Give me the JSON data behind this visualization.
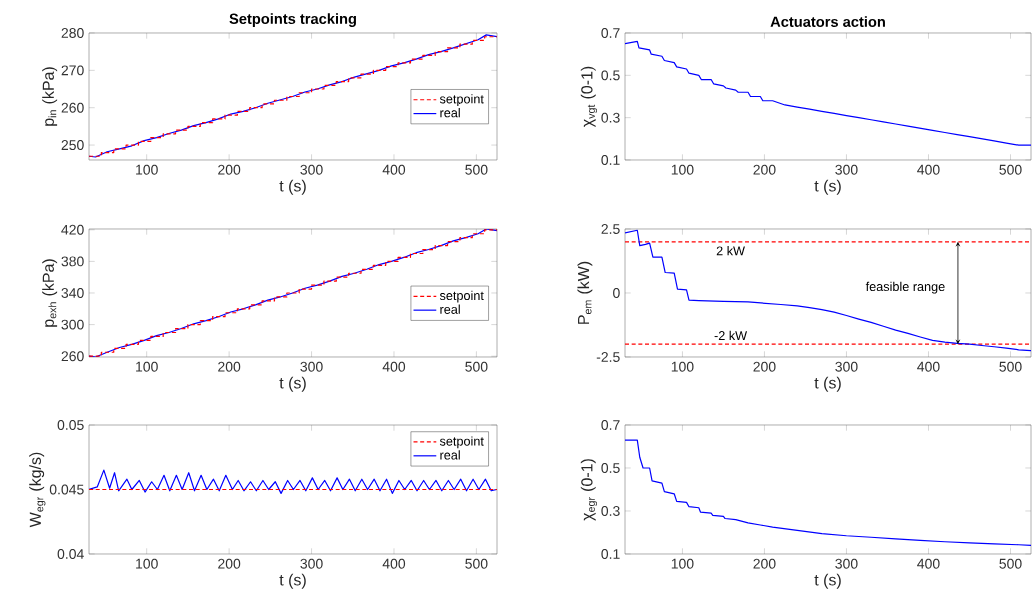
{
  "chart_data": [
    {
      "type": "line",
      "title": "Setpoints tracking",
      "xlabel": "t (s)",
      "ylabel": "p$_{in}$ (kPa)",
      "xlim": [
        30,
        525
      ],
      "xticks": [
        100,
        200,
        300,
        400,
        500
      ],
      "ylim": [
        246,
        280
      ],
      "yticks": [
        250,
        260,
        270,
        280
      ],
      "legend": "right",
      "series": [
        {
          "name": "setpoint",
          "type": "step",
          "color": "#ff0000",
          "line_style": "dashed",
          "x": [
            30,
            45,
            60,
            75,
            90,
            105,
            120,
            135,
            150,
            165,
            180,
            195,
            210,
            225,
            240,
            255,
            270,
            285,
            300,
            315,
            330,
            345,
            360,
            375,
            390,
            405,
            420,
            435,
            450,
            465,
            480,
            495,
            510,
            525
          ],
          "values": [
            247,
            248,
            249,
            250,
            251,
            252,
            253,
            254,
            255,
            256,
            257,
            258,
            259,
            260,
            261,
            262,
            263,
            264,
            265,
            266,
            267,
            268,
            269,
            270,
            271,
            272,
            273,
            274,
            275,
            276,
            277,
            278,
            279,
            279
          ]
        },
        {
          "name": "real",
          "color": "#0000ff",
          "line_style": "solid",
          "x": [
            30,
            38,
            52,
            67,
            82,
            97,
            112,
            127,
            142,
            157,
            172,
            187,
            202,
            217,
            232,
            247,
            262,
            277,
            292,
            307,
            322,
            337,
            352,
            367,
            382,
            397,
            412,
            427,
            442,
            457,
            472,
            487,
            502,
            512,
            525
          ],
          "values": [
            247,
            246.8,
            248.2,
            249,
            249.8,
            251.2,
            252,
            253.1,
            254,
            255.2,
            256,
            257,
            258.3,
            259,
            260,
            261.2,
            262.1,
            263,
            264.2,
            265,
            266.1,
            267,
            268.2,
            269.1,
            270,
            271.2,
            272,
            273,
            274.2,
            275,
            276,
            277.1,
            278.2,
            279.5,
            279
          ]
        }
      ]
    },
    {
      "type": "line",
      "title": "Actuators action",
      "xlabel": "t (s)",
      "ylabel": "χ$_{vgt}$ (0-1)",
      "xlim": [
        30,
        525
      ],
      "xticks": [
        100,
        200,
        300,
        400,
        500
      ],
      "ylim": [
        0.1,
        0.7
      ],
      "yticks": [
        0.1,
        0.3,
        0.5,
        0.7
      ],
      "series": [
        {
          "color": "#0000ff",
          "line_style": "solid",
          "x": [
            30,
            45,
            47,
            60,
            62,
            75,
            78,
            90,
            93,
            105,
            108,
            120,
            123,
            135,
            138,
            150,
            153,
            165,
            168,
            180,
            183,
            195,
            198,
            210,
            225,
            240,
            255,
            270,
            285,
            300,
            315,
            330,
            345,
            360,
            375,
            390,
            405,
            420,
            435,
            450,
            465,
            480,
            495,
            510,
            525
          ],
          "values": [
            0.65,
            0.66,
            0.63,
            0.62,
            0.6,
            0.59,
            0.57,
            0.56,
            0.54,
            0.53,
            0.51,
            0.5,
            0.48,
            0.48,
            0.46,
            0.45,
            0.44,
            0.43,
            0.42,
            0.42,
            0.4,
            0.4,
            0.38,
            0.38,
            0.36,
            0.35,
            0.34,
            0.33,
            0.32,
            0.31,
            0.3,
            0.29,
            0.28,
            0.27,
            0.26,
            0.25,
            0.24,
            0.23,
            0.22,
            0.21,
            0.2,
            0.19,
            0.18,
            0.17,
            0.17
          ]
        }
      ]
    },
    {
      "type": "line",
      "xlabel": "t (s)",
      "ylabel": "p$_{exh}$ (kPa)",
      "xlim": [
        30,
        525
      ],
      "xticks": [
        100,
        200,
        300,
        400,
        500
      ],
      "ylim": [
        259,
        421
      ],
      "yticks": [
        260,
        300,
        340,
        380,
        420
      ],
      "legend": "right",
      "series": [
        {
          "name": "setpoint",
          "type": "step",
          "color": "#ff0000",
          "line_style": "dashed",
          "x": [
            30,
            45,
            60,
            75,
            90,
            105,
            120,
            135,
            150,
            165,
            180,
            195,
            210,
            225,
            240,
            255,
            270,
            285,
            300,
            315,
            330,
            345,
            360,
            375,
            390,
            405,
            420,
            435,
            450,
            465,
            480,
            495,
            510,
            525
          ],
          "values": [
            260,
            265,
            270,
            275,
            280,
            285,
            290,
            295,
            300,
            305,
            310,
            315,
            320,
            325,
            330,
            335,
            340,
            345,
            350,
            355,
            360,
            365,
            370,
            375,
            380,
            385,
            390,
            395,
            400,
            405,
            410,
            415,
            420,
            420
          ]
        },
        {
          "name": "real",
          "color": "#0000ff",
          "line_style": "solid",
          "x": [
            30,
            38,
            52,
            67,
            82,
            97,
            112,
            127,
            142,
            157,
            172,
            187,
            202,
            217,
            232,
            247,
            262,
            277,
            292,
            307,
            322,
            337,
            352,
            367,
            382,
            397,
            412,
            427,
            442,
            457,
            472,
            487,
            502,
            512,
            525
          ],
          "values": [
            260,
            259,
            265,
            271,
            275,
            280,
            286,
            290,
            295,
            301,
            305,
            310,
            316,
            320,
            325,
            331,
            335,
            340,
            346,
            350,
            355,
            361,
            365,
            370,
            376,
            380,
            385,
            391,
            395,
            400,
            406,
            410,
            415,
            421,
            419
          ]
        }
      ]
    },
    {
      "type": "line",
      "xlabel": "t (s)",
      "ylabel": "P$_{em}$ (kW)",
      "xlim": [
        30,
        525
      ],
      "xticks": [
        100,
        200,
        300,
        400,
        500
      ],
      "ylim": [
        -2.5,
        2.5
      ],
      "yticks": [
        -2.5,
        0,
        2.5
      ],
      "ref_lines": [
        {
          "axis": "y",
          "value": 2,
          "label": "2 kW",
          "color": "#ff0000",
          "line_style": "dashed"
        },
        {
          "axis": "y",
          "value": -2,
          "label": "-2 kW",
          "color": "#ff0000",
          "line_style": "dashed"
        }
      ],
      "annotations": [
        "feasible range"
      ],
      "series": [
        {
          "color": "#0000ff",
          "line_style": "solid",
          "x": [
            30,
            45,
            48,
            55,
            60,
            64,
            75,
            79,
            90,
            94,
            105,
            108,
            120,
            150,
            180,
            200,
            220,
            240,
            255,
            270,
            285,
            300,
            315,
            330,
            345,
            360,
            375,
            390,
            405,
            420,
            435,
            450,
            465,
            480,
            495,
            510,
            525
          ],
          "values": [
            2.35,
            2.45,
            1.85,
            1.9,
            1.95,
            1.4,
            1.4,
            0.8,
            0.78,
            0.15,
            0.12,
            -0.28,
            -0.3,
            -0.33,
            -0.35,
            -0.4,
            -0.45,
            -0.5,
            -0.57,
            -0.65,
            -0.75,
            -0.88,
            -1.02,
            -1.15,
            -1.3,
            -1.45,
            -1.58,
            -1.72,
            -1.85,
            -1.92,
            -1.97,
            -2.0,
            -2.05,
            -2.1,
            -2.15,
            -2.22,
            -2.25
          ]
        }
      ]
    },
    {
      "type": "line",
      "xlabel": "t (s)",
      "ylabel": "W$_{egr}$ (kg/s)",
      "xlim": [
        30,
        525
      ],
      "xticks": [
        100,
        200,
        300,
        400,
        500
      ],
      "ylim": [
        0.04,
        0.05
      ],
      "yticks": [
        0.04,
        0.045,
        0.05
      ],
      "legend": "top right",
      "series": [
        {
          "name": "setpoint",
          "type": "step",
          "color": "#ff0000",
          "line_style": "dashed",
          "x": [
            30,
            525
          ],
          "values": [
            0.045,
            0.045
          ]
        },
        {
          "name": "real",
          "color": "#0000ff",
          "line_style": "solid",
          "x": [
            30,
            40,
            48,
            55,
            61,
            66,
            76,
            82,
            91,
            98,
            106,
            113,
            121,
            128,
            136,
            143,
            151,
            158,
            166,
            173,
            181,
            188,
            196,
            204,
            211,
            218,
            226,
            233,
            241,
            248,
            256,
            263,
            271,
            278,
            286,
            293,
            301,
            308,
            316,
            323,
            331,
            338,
            346,
            353,
            361,
            368,
            376,
            383,
            391,
            398,
            406,
            413,
            421,
            428,
            436,
            443,
            451,
            458,
            466,
            473,
            481,
            488,
            496,
            503,
            511,
            518,
            525
          ],
          "values": [
            0.045,
            0.0452,
            0.0465,
            0.0451,
            0.0463,
            0.0449,
            0.0458,
            0.045,
            0.0457,
            0.0448,
            0.0456,
            0.045,
            0.0461,
            0.0449,
            0.0461,
            0.045,
            0.0463,
            0.0449,
            0.0461,
            0.045,
            0.0458,
            0.0449,
            0.0461,
            0.045,
            0.0457,
            0.0449,
            0.0456,
            0.0449,
            0.0457,
            0.045,
            0.0456,
            0.0447,
            0.0457,
            0.045,
            0.0457,
            0.0449,
            0.0459,
            0.045,
            0.0457,
            0.0449,
            0.0459,
            0.045,
            0.0458,
            0.0449,
            0.0458,
            0.045,
            0.0458,
            0.0449,
            0.0458,
            0.0447,
            0.0457,
            0.045,
            0.0457,
            0.0449,
            0.0457,
            0.045,
            0.0457,
            0.0449,
            0.0457,
            0.045,
            0.0458,
            0.0449,
            0.0458,
            0.045,
            0.0458,
            0.0449,
            0.045
          ]
        }
      ]
    },
    {
      "type": "line",
      "xlabel": "t (s)",
      "ylabel": "χ$_{egr}$ (0-1)",
      "xlim": [
        30,
        525
      ],
      "xticks": [
        100,
        200,
        300,
        400,
        500
      ],
      "ylim": [
        0.1,
        0.7
      ],
      "yticks": [
        0.1,
        0.3,
        0.5,
        0.7
      ],
      "series": [
        {
          "color": "#0000ff",
          "line_style": "solid",
          "x": [
            30,
            45,
            48,
            52,
            60,
            63,
            75,
            78,
            90,
            93,
            105,
            108,
            120,
            122,
            135,
            137,
            150,
            152,
            165,
            180,
            195,
            210,
            240,
            270,
            300,
            330,
            360,
            390,
            420,
            450,
            480,
            510,
            525
          ],
          "values": [
            0.63,
            0.63,
            0.55,
            0.5,
            0.5,
            0.44,
            0.43,
            0.39,
            0.38,
            0.345,
            0.34,
            0.32,
            0.315,
            0.295,
            0.29,
            0.28,
            0.275,
            0.265,
            0.26,
            0.245,
            0.235,
            0.225,
            0.21,
            0.195,
            0.185,
            0.178,
            0.17,
            0.163,
            0.157,
            0.152,
            0.147,
            0.143,
            0.14
          ]
        }
      ]
    }
  ]
}
